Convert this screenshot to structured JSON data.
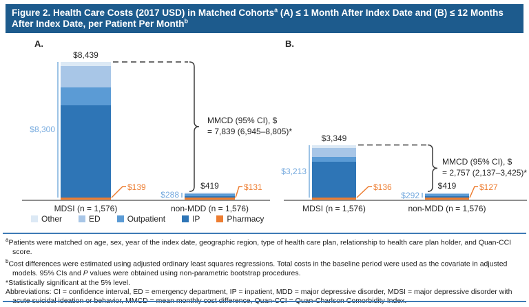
{
  "header": {
    "title_main": "Figure 2. Health Care Costs (2017 USD) in Matched Cohorts",
    "title_sup_a": "a",
    "title_mid": " (A) ≤ 1 Month After Index Date and (B) ≤ 12 Months After Index Date, per Patient Per Month",
    "title_sup_b": "b"
  },
  "colors": {
    "title_bar_bg": "#1d5b8d",
    "rule_blue": "#3d7ab5",
    "axis_gray": "#8f8f8f",
    "annotation_gray": "#3d3d3d",
    "subtotal_text_blue": "#74a9de",
    "pharmacy_text_orange": "#ed7d31"
  },
  "legend": {
    "items": [
      {
        "label": "Other",
        "color": "#dce9f5"
      },
      {
        "label": "ED",
        "color": "#a8c6e7"
      },
      {
        "label": "Outpatient",
        "color": "#5b9bd5"
      },
      {
        "label": "IP",
        "color": "#2e75b6"
      },
      {
        "label": "Pharmacy",
        "color": "#ed7d31"
      }
    ]
  },
  "chart_data": [
    {
      "type": "bar",
      "stacked": true,
      "panel_label": "A.",
      "categories": [
        "MDSI (n = 1,576)",
        "non-MDD (n = 1,576)"
      ],
      "series": [
        {
          "name": "Pharmacy",
          "values": [
            139,
            131
          ]
        },
        {
          "name": "IP",
          "values": [
            5620,
            100
          ]
        },
        {
          "name": "Outpatient",
          "values": [
            1105,
            120
          ]
        },
        {
          "name": "ED",
          "values": [
            1320,
            50
          ]
        },
        {
          "name": "Other",
          "values": [
            255,
            18
          ]
        }
      ],
      "totals": [
        8439,
        419
      ],
      "total_labels": [
        "$8,439",
        "$419"
      ],
      "medical_subtotal_labels": [
        "$8,300",
        "$288"
      ],
      "pharmacy_labels": [
        "$139",
        "$131"
      ],
      "mmcd_label_line1": "MMCD (95% CI), $",
      "mmcd_label_line2": "= 7,839 (6,945–8,805)*",
      "note": "Only totals, medical subtotals and pharmacy amounts are labeled in the figure; IP/Outpatient/ED/Other splits are estimated from segment proportions."
    },
    {
      "type": "bar",
      "stacked": true,
      "panel_label": "B.",
      "categories": [
        "MDSI (n = 1,576)",
        "non-MDD (n = 1,576)"
      ],
      "series": [
        {
          "name": "Pharmacy",
          "values": [
            136,
            127
          ]
        },
        {
          "name": "IP",
          "values": [
            2200,
            100
          ]
        },
        {
          "name": "Outpatient",
          "values": [
            260,
            115
          ]
        },
        {
          "name": "ED",
          "values": [
            550,
            55
          ]
        },
        {
          "name": "Other",
          "values": [
            203,
            22
          ]
        }
      ],
      "totals": [
        3349,
        419
      ],
      "total_labels": [
        "$3,349",
        "$419"
      ],
      "medical_subtotal_labels": [
        "$3,213",
        "$292"
      ],
      "pharmacy_labels": [
        "$136",
        "$127"
      ],
      "mmcd_label_line1": "MMCD (95% CI), $",
      "mmcd_label_line2": "= 2,757 (2,137–3,425)*",
      "note": "Only totals, medical subtotals and pharmacy amounts are labeled in the figure; IP/Outpatient/ED/Other splits are estimated from segment proportions."
    }
  ],
  "footnotes": {
    "a_marker": "a",
    "a_text": "Patients were matched on age, sex, year of the index date, geographic region, type of health care plan, relationship to health care plan holder, and Quan-CCI score.",
    "b_marker": "b",
    "b_text1": "Cost differences were estimated using adjusted ordinary least squares regressions. Total costs in the baseline period were used as the covariate in adjusted models. 95% CIs and ",
    "b_italic": "P",
    "b_text2": " values were obtained using non-parametric bootstrap procedures.",
    "star_marker": "*",
    "star_text": "Statistically significant at the 5% level.",
    "abbreviations": "Abbreviations: CI = confidence interval, ED = emergency department, IP = inpatient, MDD = major depressive disorder, MDSI = major depressive disorder with acute suicidal ideation or behavior, MMCD = mean monthly cost difference, Quan-CCI = Quan-Charlson Comorbidity Index."
  }
}
